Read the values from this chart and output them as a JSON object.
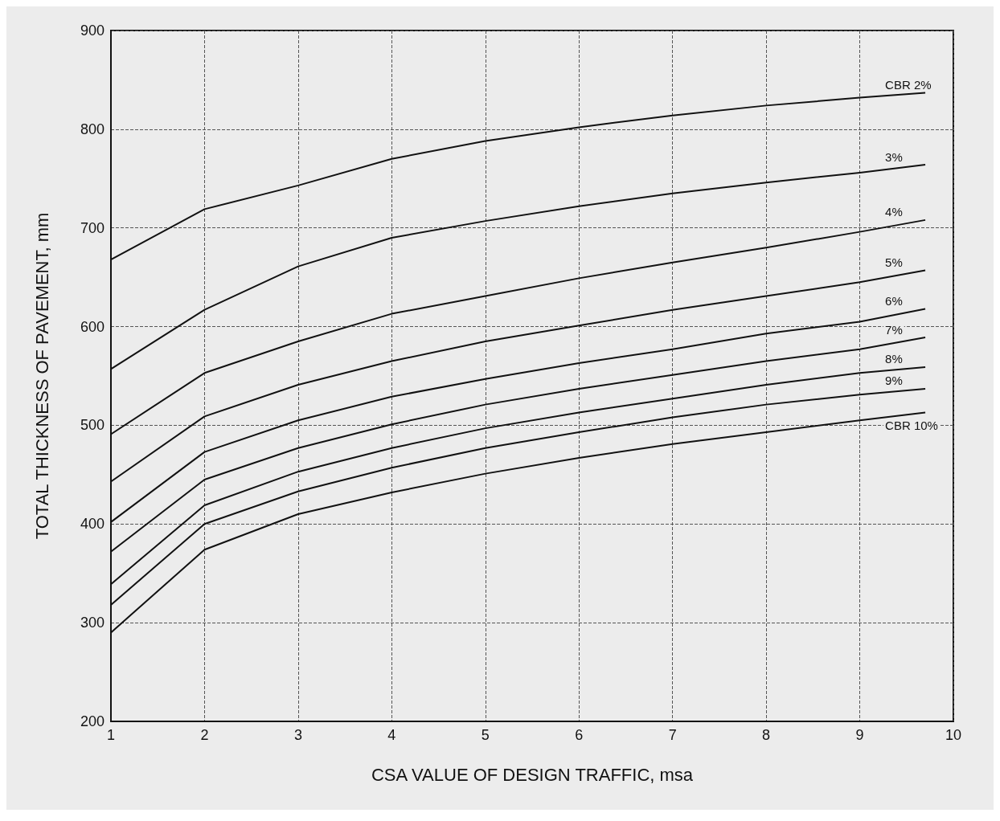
{
  "chart_data": {
    "type": "line",
    "xlabel": "CSA VALUE OF DESIGN TRAFFIC, msa",
    "ylabel": "TOTAL THICKNESS OF PAVEMENT, mm",
    "x": [
      1,
      2,
      3,
      4,
      5,
      6,
      7,
      8,
      9,
      9.7
    ],
    "series": [
      {
        "name": "CBR 2%",
        "color": "#111111",
        "values": [
          668,
          719,
          743,
          770,
          788,
          802,
          814,
          824,
          832,
          837
        ]
      },
      {
        "name": "3%",
        "color": "#111111",
        "values": [
          557,
          617,
          661,
          690,
          707,
          722,
          735,
          746,
          756,
          764
        ]
      },
      {
        "name": "4%",
        "color": "#111111",
        "values": [
          491,
          553,
          585,
          613,
          631,
          649,
          665,
          680,
          696,
          708
        ]
      },
      {
        "name": "5%",
        "color": "#111111",
        "values": [
          443,
          509,
          541,
          565,
          585,
          601,
          617,
          631,
          645,
          657
        ]
      },
      {
        "name": "6%",
        "color": "#111111",
        "values": [
          402,
          473,
          505,
          529,
          547,
          563,
          577,
          593,
          605,
          618
        ]
      },
      {
        "name": "7%",
        "color": "#111111",
        "values": [
          372,
          445,
          477,
          501,
          521,
          537,
          551,
          565,
          577,
          589
        ]
      },
      {
        "name": "8%",
        "color": "#111111",
        "values": [
          339,
          419,
          453,
          477,
          497,
          513,
          527,
          541,
          553,
          559
        ]
      },
      {
        "name": "9%",
        "color": "#111111",
        "values": [
          318,
          400,
          433,
          457,
          477,
          493,
          508,
          521,
          531,
          537
        ]
      },
      {
        "name": "CBR 10%",
        "color": "#111111",
        "values": [
          290,
          374,
          410,
          432,
          451,
          467,
          481,
          493,
          505,
          513
        ]
      }
    ],
    "xlim": [
      1,
      10
    ],
    "xticks": [
      1,
      2,
      3,
      4,
      5,
      6,
      7,
      8,
      9,
      10
    ],
    "ylim": [
      200,
      900
    ],
    "yticks": [
      200,
      300,
      400,
      500,
      600,
      700,
      800,
      900
    ],
    "grid": true,
    "legend": false,
    "marker": "none",
    "line_style": "solid"
  }
}
